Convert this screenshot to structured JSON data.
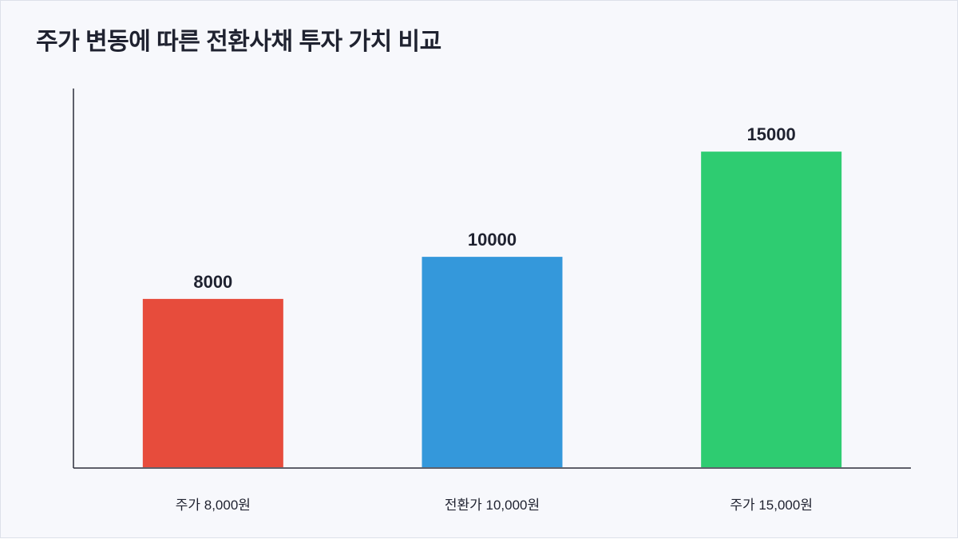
{
  "chart_data": {
    "type": "bar",
    "title": "주가 변동에 따른 전환사채 투자 가치 비교",
    "xlabel": "",
    "ylabel": "",
    "categories": [
      "주가 8,000원",
      "전환가 10,000원",
      "주가 15,000원"
    ],
    "values": [
      8000,
      10000,
      15000
    ],
    "value_labels": [
      "8000",
      "10000",
      "15000"
    ],
    "colors": [
      "#e74c3c",
      "#3498db",
      "#2ecc71"
    ],
    "ylim": [
      0,
      18000
    ],
    "grid": false,
    "legend": "none"
  }
}
